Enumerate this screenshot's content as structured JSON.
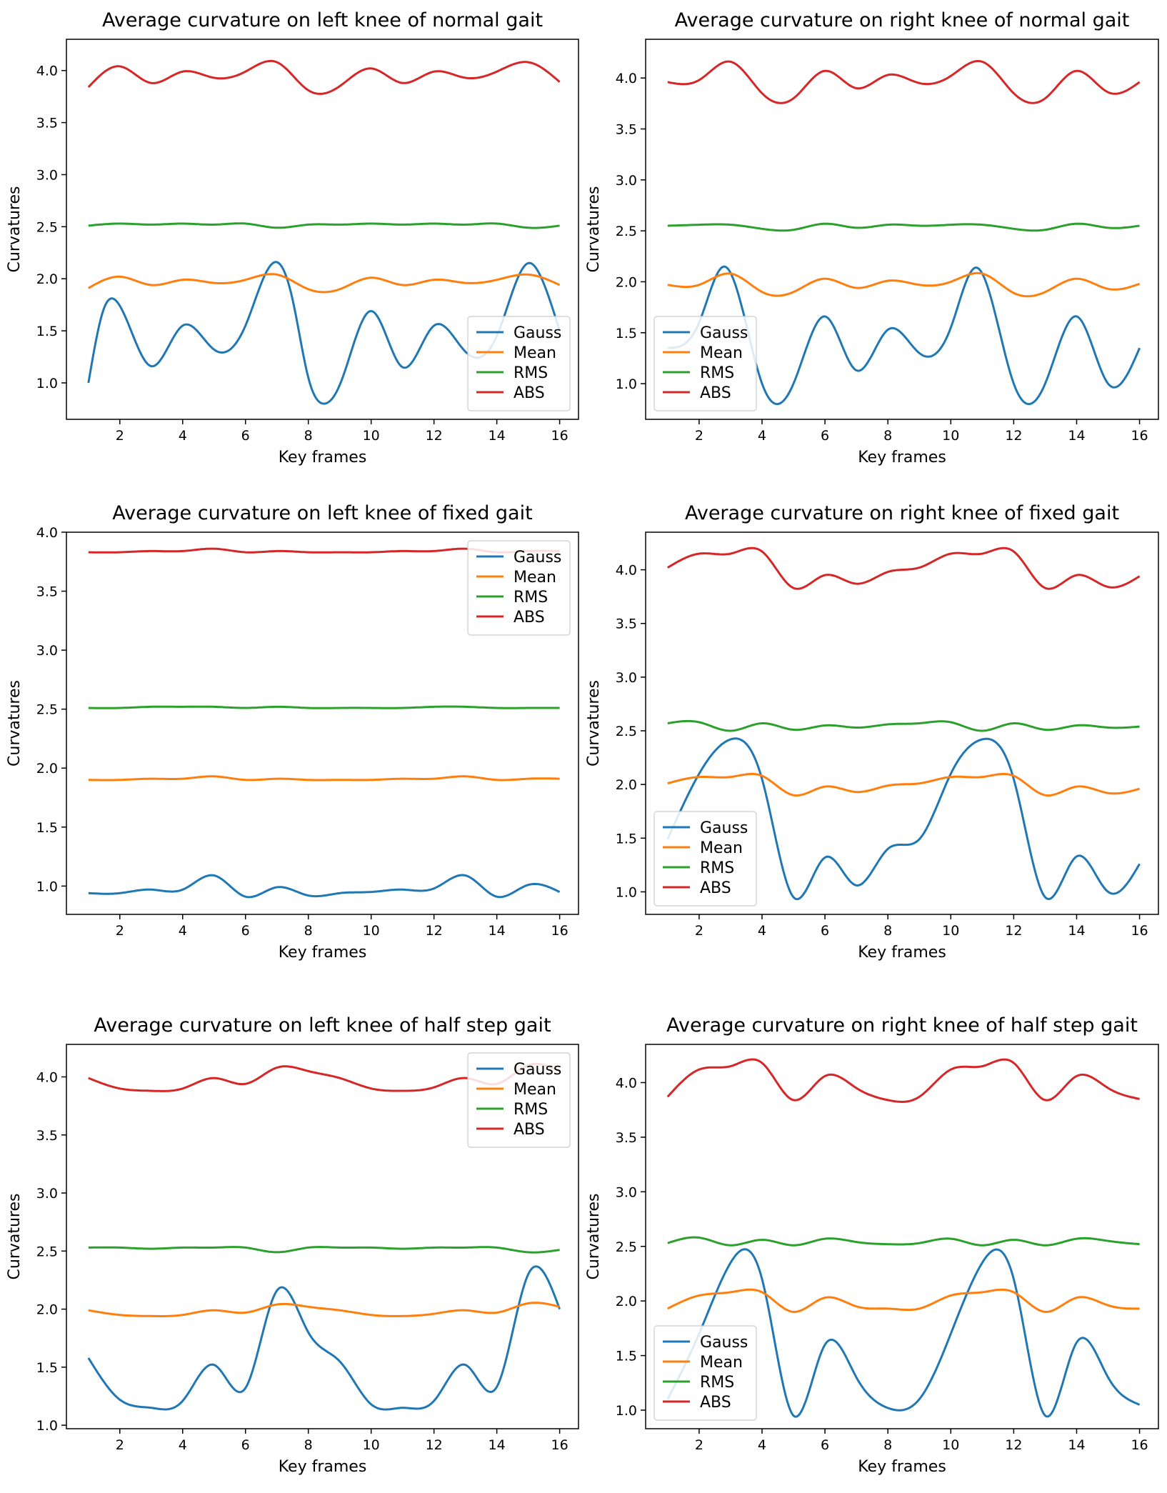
{
  "figure": {
    "series_colors": {
      "Gauss": "#1f77b4",
      "Mean": "#ff7f0e",
      "RMS": "#2ca02c",
      "ABS": "#d62728"
    }
  },
  "chart_data": [
    {
      "type": "line",
      "title": "Average curvature on left knee of normal gait",
      "xlabel": "Key frames",
      "ylabel": "Curvatures",
      "xlim": [
        0.3,
        16.6
      ],
      "ylim": [
        0.65,
        4.3
      ],
      "xticks": [
        2,
        4,
        6,
        8,
        10,
        12,
        14,
        16
      ],
      "yticks": [
        1.0,
        1.5,
        2.0,
        2.5,
        3.0,
        3.5,
        4.0
      ],
      "legend": "lower-right",
      "grid": false,
      "series": [
        {
          "name": "Gauss",
          "color": "#1f77b4",
          "x": [
            1,
            1.5,
            2,
            3,
            4,
            5,
            6,
            7,
            7.5,
            8,
            8.5,
            9,
            10,
            11,
            12,
            13,
            14,
            15,
            15.5,
            16
          ],
          "y": [
            1.0,
            1.72,
            1.74,
            1.16,
            1.55,
            1.32,
            1.55,
            2.16,
            1.8,
            1.05,
            0.8,
            0.98,
            1.69,
            1.15,
            1.55,
            1.3,
            1.45,
            2.15,
            1.95,
            1.5
          ]
        },
        {
          "name": "Mean",
          "color": "#ff7f0e",
          "x": [
            1,
            2,
            3,
            4,
            5,
            6,
            7,
            8,
            9,
            10,
            11,
            12,
            13,
            14,
            15,
            16
          ],
          "y": [
            1.91,
            2.02,
            1.94,
            1.99,
            1.96,
            1.99,
            2.04,
            1.9,
            1.9,
            2.01,
            1.94,
            1.99,
            1.96,
            1.99,
            2.04,
            1.94
          ]
        },
        {
          "name": "RMS",
          "color": "#2ca02c",
          "x": [
            1,
            2,
            3,
            4,
            5,
            6,
            7,
            8,
            9,
            10,
            11,
            12,
            13,
            14,
            15,
            16
          ],
          "y": [
            2.51,
            2.53,
            2.52,
            2.53,
            2.52,
            2.53,
            2.49,
            2.52,
            2.52,
            2.53,
            2.52,
            2.53,
            2.52,
            2.53,
            2.49,
            2.51
          ]
        },
        {
          "name": "ABS",
          "color": "#d62728",
          "x": [
            1,
            2,
            3,
            4,
            5,
            6,
            7,
            8,
            9,
            10,
            11,
            12,
            13,
            14,
            15,
            16
          ],
          "y": [
            3.84,
            4.04,
            3.88,
            3.99,
            3.93,
            3.99,
            4.08,
            3.81,
            3.85,
            4.02,
            3.88,
            3.99,
            3.93,
            3.99,
            4.08,
            3.89
          ]
        }
      ]
    },
    {
      "type": "line",
      "title": "Average curvature on right knee of normal gait",
      "xlabel": "Key frames",
      "ylabel": "Curvatures",
      "xlim": [
        0.3,
        16.6
      ],
      "ylim": [
        0.65,
        4.38
      ],
      "xticks": [
        2,
        4,
        6,
        8,
        10,
        12,
        14,
        16
      ],
      "yticks": [
        1.0,
        1.5,
        2.0,
        2.5,
        3.0,
        3.5,
        4.0
      ],
      "legend": "lower-left",
      "grid": false,
      "series": [
        {
          "name": "Gauss",
          "color": "#1f77b4",
          "x": [
            1,
            2,
            2.8,
            4,
            4.5,
            5,
            6,
            7,
            8,
            9,
            10,
            10.8,
            12,
            12.5,
            13,
            14,
            15,
            16
          ],
          "y": [
            1.35,
            1.6,
            2.15,
            1.0,
            0.8,
            1.0,
            1.66,
            1.13,
            1.53,
            1.3,
            1.55,
            2.14,
            1.0,
            0.8,
            1.0,
            1.66,
            1.0,
            1.35
          ]
        },
        {
          "name": "Mean",
          "color": "#ff7f0e",
          "x": [
            1,
            2,
            3,
            4,
            5,
            6,
            7,
            8,
            9,
            10,
            11,
            12,
            13,
            14,
            15,
            16
          ],
          "y": [
            1.97,
            1.97,
            2.08,
            1.9,
            1.9,
            2.03,
            1.94,
            2.01,
            1.97,
            2.0,
            2.08,
            1.89,
            1.9,
            2.03,
            1.93,
            1.98
          ]
        },
        {
          "name": "RMS",
          "color": "#2ca02c",
          "x": [
            1,
            2,
            3,
            4,
            5,
            6,
            7,
            8,
            9,
            10,
            11,
            12,
            13,
            14,
            15,
            16
          ],
          "y": [
            2.55,
            2.56,
            2.56,
            2.52,
            2.51,
            2.57,
            2.53,
            2.56,
            2.55,
            2.56,
            2.56,
            2.52,
            2.51,
            2.57,
            2.53,
            2.55
          ]
        },
        {
          "name": "ABS",
          "color": "#d62728",
          "x": [
            1,
            2,
            3,
            4,
            5,
            6,
            7,
            8,
            9,
            10,
            11,
            12,
            13,
            14,
            15,
            16
          ],
          "y": [
            3.96,
            3.98,
            4.16,
            3.85,
            3.8,
            4.07,
            3.9,
            4.03,
            3.95,
            4.02,
            4.16,
            3.85,
            3.8,
            4.07,
            3.86,
            3.96
          ]
        }
      ]
    },
    {
      "type": "line",
      "title": "Average curvature on left knee of fixed gait",
      "xlabel": "Key frames",
      "ylabel": "Curvatures",
      "xlim": [
        0.3,
        16.6
      ],
      "ylim": [
        0.76,
        4.0
      ],
      "xticks": [
        2,
        4,
        6,
        8,
        10,
        12,
        14,
        16
      ],
      "yticks": [
        1.0,
        1.5,
        2.0,
        2.5,
        3.0,
        3.5,
        4.0
      ],
      "legend": "upper-right",
      "grid": false,
      "series": [
        {
          "name": "Gauss",
          "color": "#1f77b4",
          "x": [
            1,
            2,
            3,
            4,
            5,
            6,
            7,
            8,
            9,
            10,
            11,
            12,
            13,
            14,
            15,
            16
          ],
          "y": [
            0.94,
            0.94,
            0.97,
            0.97,
            1.09,
            0.91,
            0.99,
            0.92,
            0.94,
            0.95,
            0.97,
            0.98,
            1.09,
            0.91,
            1.01,
            0.95
          ]
        },
        {
          "name": "Mean",
          "color": "#ff7f0e",
          "x": [
            1,
            2,
            3,
            4,
            5,
            6,
            7,
            8,
            9,
            10,
            11,
            12,
            13,
            14,
            15,
            16
          ],
          "y": [
            1.9,
            1.9,
            1.91,
            1.91,
            1.93,
            1.9,
            1.91,
            1.9,
            1.9,
            1.9,
            1.91,
            1.91,
            1.93,
            1.9,
            1.91,
            1.91
          ]
        },
        {
          "name": "RMS",
          "color": "#2ca02c",
          "x": [
            1,
            2,
            3,
            4,
            5,
            6,
            7,
            8,
            9,
            10,
            11,
            12,
            13,
            14,
            15,
            16
          ],
          "y": [
            2.51,
            2.51,
            2.52,
            2.52,
            2.52,
            2.51,
            2.52,
            2.51,
            2.51,
            2.51,
            2.51,
            2.52,
            2.52,
            2.51,
            2.51,
            2.51
          ]
        },
        {
          "name": "ABS",
          "color": "#d62728",
          "x": [
            1,
            2,
            3,
            4,
            5,
            6,
            7,
            8,
            9,
            10,
            11,
            12,
            13,
            14,
            15,
            16
          ],
          "y": [
            3.83,
            3.83,
            3.84,
            3.84,
            3.86,
            3.83,
            3.84,
            3.83,
            3.83,
            3.83,
            3.84,
            3.84,
            3.86,
            3.83,
            3.84,
            3.84
          ]
        }
      ]
    },
    {
      "type": "line",
      "title": "Average curvature on right knee of fixed gait",
      "xlabel": "Key frames",
      "ylabel": "Curvatures",
      "xlim": [
        0.3,
        16.6
      ],
      "ylim": [
        0.79,
        4.35
      ],
      "xticks": [
        2,
        4,
        6,
        8,
        10,
        12,
        14,
        16
      ],
      "yticks": [
        1.0,
        1.5,
        2.0,
        2.5,
        3.0,
        3.5,
        4.0
      ],
      "legend": "lower-left",
      "grid": false,
      "series": [
        {
          "name": "Gauss",
          "color": "#1f77b4",
          "x": [
            1,
            2,
            3,
            4,
            5,
            6,
            7,
            8,
            9,
            10,
            11,
            12,
            13,
            14,
            15,
            16
          ],
          "y": [
            1.49,
            2.1,
            2.42,
            2.05,
            0.95,
            1.32,
            1.06,
            1.4,
            1.49,
            2.1,
            2.42,
            2.05,
            0.95,
            1.33,
            1.0,
            1.26
          ]
        },
        {
          "name": "Mean",
          "color": "#ff7f0e",
          "x": [
            1,
            2,
            3,
            4,
            5,
            6,
            7,
            8,
            9,
            10,
            11,
            12,
            13,
            14,
            15,
            16
          ],
          "y": [
            2.01,
            2.07,
            2.07,
            2.08,
            1.9,
            1.98,
            1.93,
            1.99,
            2.01,
            2.07,
            2.07,
            2.08,
            1.9,
            1.98,
            1.92,
            1.96
          ]
        },
        {
          "name": "RMS",
          "color": "#2ca02c",
          "x": [
            1,
            2,
            3,
            4,
            5,
            6,
            7,
            8,
            9,
            10,
            11,
            12,
            13,
            14,
            15,
            16
          ],
          "y": [
            2.57,
            2.58,
            2.5,
            2.57,
            2.51,
            2.55,
            2.53,
            2.56,
            2.57,
            2.58,
            2.5,
            2.57,
            2.51,
            2.55,
            2.53,
            2.54
          ]
        },
        {
          "name": "ABS",
          "color": "#d62728",
          "x": [
            1,
            2,
            3,
            4,
            5,
            6,
            7,
            8,
            9,
            10,
            11,
            12,
            13,
            14,
            15,
            16
          ],
          "y": [
            4.02,
            4.15,
            4.15,
            4.17,
            3.83,
            3.95,
            3.87,
            3.98,
            4.02,
            4.15,
            4.15,
            4.17,
            3.83,
            3.95,
            3.84,
            3.94
          ]
        }
      ]
    },
    {
      "type": "line",
      "title": "Average curvature on left knee of half step gait",
      "xlabel": "Key frames",
      "ylabel": "Curvatures",
      "xlim": [
        0.3,
        16.6
      ],
      "ylim": [
        0.97,
        4.28
      ],
      "xticks": [
        2,
        4,
        6,
        8,
        10,
        12,
        14,
        16
      ],
      "yticks": [
        1.0,
        1.5,
        2.0,
        2.5,
        3.0,
        3.5,
        4.0
      ],
      "legend": "upper-right",
      "grid": false,
      "series": [
        {
          "name": "Gauss",
          "color": "#1f77b4",
          "x": [
            1,
            2,
            3,
            4,
            5,
            6,
            7,
            8,
            9,
            10,
            11,
            12,
            13,
            14,
            15,
            16
          ],
          "y": [
            1.58,
            1.22,
            1.15,
            1.21,
            1.52,
            1.32,
            2.16,
            1.8,
            1.55,
            1.18,
            1.15,
            1.21,
            1.52,
            1.33,
            2.3,
            2.0
          ]
        },
        {
          "name": "Mean",
          "color": "#ff7f0e",
          "x": [
            1,
            2,
            3,
            4,
            5,
            6,
            7,
            8,
            9,
            10,
            11,
            12,
            13,
            14,
            15,
            16
          ],
          "y": [
            1.99,
            1.95,
            1.94,
            1.95,
            1.99,
            1.97,
            2.04,
            2.02,
            1.99,
            1.95,
            1.94,
            1.96,
            1.99,
            1.97,
            2.05,
            2.02
          ]
        },
        {
          "name": "RMS",
          "color": "#2ca02c",
          "x": [
            1,
            2,
            3,
            4,
            5,
            6,
            7,
            8,
            9,
            10,
            11,
            12,
            13,
            14,
            15,
            16
          ],
          "y": [
            2.53,
            2.53,
            2.52,
            2.53,
            2.53,
            2.53,
            2.49,
            2.53,
            2.53,
            2.53,
            2.52,
            2.53,
            2.53,
            2.53,
            2.49,
            2.51
          ]
        },
        {
          "name": "ABS",
          "color": "#d62728",
          "x": [
            1,
            2,
            3,
            4,
            5,
            6,
            7,
            8,
            9,
            10,
            11,
            12,
            13,
            14,
            15,
            16
          ],
          "y": [
            3.99,
            3.9,
            3.88,
            3.9,
            3.99,
            3.94,
            4.08,
            4.05,
            3.99,
            3.9,
            3.88,
            3.91,
            3.99,
            3.94,
            4.1,
            4.05
          ]
        }
      ]
    },
    {
      "type": "line",
      "title": "Average curvature on right knee of half step gait",
      "xlabel": "Key frames",
      "ylabel": "Curvatures",
      "xlim": [
        0.3,
        16.6
      ],
      "ylim": [
        0.83,
        4.35
      ],
      "xticks": [
        2,
        4,
        6,
        8,
        10,
        12,
        14,
        16
      ],
      "yticks": [
        1.0,
        1.5,
        2.0,
        2.5,
        3.0,
        3.5,
        4.0
      ],
      "legend": "lower-left",
      "grid": false,
      "series": [
        {
          "name": "Gauss",
          "color": "#1f77b4",
          "x": [
            1,
            2,
            3,
            4,
            5,
            6,
            7,
            8,
            9,
            10,
            11,
            12,
            13,
            14,
            15,
            16
          ],
          "y": [
            1.1,
            1.7,
            2.35,
            2.2,
            0.95,
            1.6,
            1.3,
            1.02,
            1.1,
            1.7,
            2.35,
            2.2,
            0.95,
            1.62,
            1.3,
            1.05
          ]
        },
        {
          "name": "Mean",
          "color": "#ff7f0e",
          "x": [
            1,
            2,
            3,
            4,
            5,
            6,
            7,
            8,
            9,
            10,
            11,
            12,
            13,
            14,
            15,
            16
          ],
          "y": [
            1.93,
            2.05,
            2.08,
            2.08,
            1.9,
            2.03,
            1.95,
            1.93,
            1.93,
            2.05,
            2.08,
            2.08,
            1.9,
            2.03,
            1.96,
            1.93
          ]
        },
        {
          "name": "RMS",
          "color": "#2ca02c",
          "x": [
            1,
            2,
            3,
            4,
            5,
            6,
            7,
            8,
            9,
            10,
            11,
            12,
            13,
            14,
            15,
            16
          ],
          "y": [
            2.53,
            2.58,
            2.51,
            2.56,
            2.51,
            2.57,
            2.54,
            2.52,
            2.53,
            2.57,
            2.51,
            2.56,
            2.51,
            2.57,
            2.55,
            2.52
          ]
        },
        {
          "name": "ABS",
          "color": "#d62728",
          "x": [
            1,
            2,
            3,
            4,
            5,
            6,
            7,
            8,
            9,
            10,
            11,
            12,
            13,
            14,
            15,
            16
          ],
          "y": [
            3.87,
            4.12,
            4.15,
            4.18,
            3.84,
            4.06,
            3.95,
            3.84,
            3.87,
            4.12,
            4.15,
            4.18,
            3.84,
            4.06,
            3.95,
            3.85
          ]
        }
      ]
    }
  ]
}
